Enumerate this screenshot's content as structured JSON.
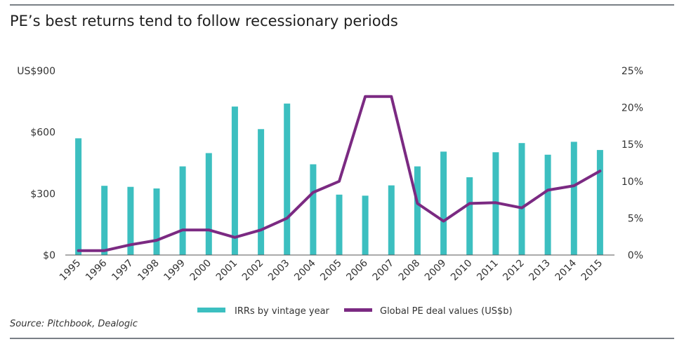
{
  "title": "PE’s best returns tend to follow recessionary periods",
  "source": "Source: Pitchbook, Dealogic",
  "colors": {
    "bars": "#3cbfc0",
    "line": "#7b2a82",
    "axis": "#555555",
    "rule": "#7a7f86"
  },
  "chart_data": {
    "type": "bar",
    "categories": [
      "1995",
      "1996",
      "1997",
      "1998",
      "1999",
      "2000",
      "2001",
      "2002",
      "2003",
      "2004",
      "2005",
      "2006",
      "2007",
      "2008",
      "2009",
      "2010",
      "2011",
      "2012",
      "2013",
      "2014",
      "2015"
    ],
    "series": [
      {
        "name": "IRRs by vintage year",
        "type": "bar",
        "axis": "left",
        "values": [
          570,
          338,
          333,
          325,
          433,
          498,
          725,
          615,
          740,
          443,
          295,
          290,
          340,
          433,
          505,
          380,
          502,
          547,
          490,
          553,
          513
        ]
      },
      {
        "name": "Global PE deal values (US$b)",
        "type": "line",
        "axis": "right",
        "values": [
          0.6,
          0.6,
          1.4,
          2.0,
          3.4,
          3.4,
          2.4,
          3.4,
          5.0,
          8.5,
          10.0,
          21.5,
          21.5,
          7.0,
          4.6,
          7.0,
          7.1,
          6.4,
          8.8,
          9.4,
          11.4
        ]
      }
    ],
    "y_left": {
      "min": 0,
      "max": 900,
      "ticks": [
        0,
        300,
        600,
        900
      ],
      "tick_labels": [
        "$0",
        "$300",
        "$600",
        "US$900"
      ]
    },
    "y_right": {
      "min": 0,
      "max": 25,
      "ticks": [
        0,
        5,
        10,
        15,
        20,
        25
      ],
      "tick_labels": [
        "0%",
        "5%",
        "10%",
        "15%",
        "20%",
        "25%"
      ]
    },
    "grid": false,
    "legend_position": "bottom"
  }
}
